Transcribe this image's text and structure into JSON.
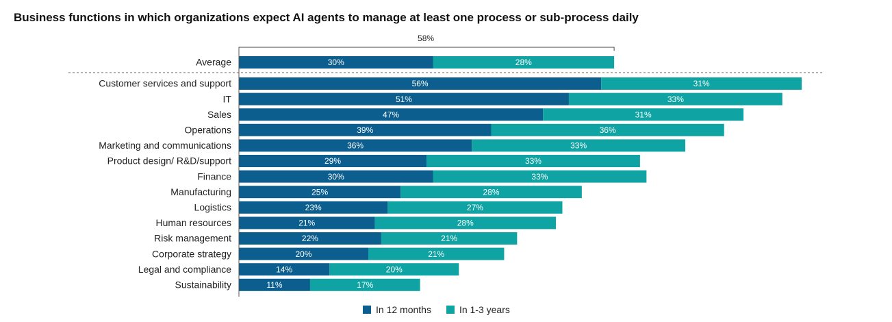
{
  "chart_data": {
    "type": "bar",
    "orientation": "horizontal-stacked",
    "title": "Business functions in which organizations expect AI agents to manage at least one process or sub-process daily",
    "average": {
      "label": "Average",
      "values": [
        30,
        28
      ],
      "value_labels": [
        "30%",
        "28%"
      ],
      "total_label": "58%"
    },
    "categories": [
      "Customer services and support",
      "IT",
      "Sales",
      "Operations",
      "Marketing and communications",
      "Product design/ R&D/support",
      "Finance",
      "Manufacturing",
      "Logistics",
      "Human resources",
      "Risk management",
      "Corporate strategy",
      "Legal and compliance",
      "Sustainability"
    ],
    "series": [
      {
        "name": "In 12 months",
        "color": "#0b5e8e",
        "values": [
          56,
          51,
          47,
          39,
          36,
          29,
          30,
          25,
          23,
          21,
          22,
          20,
          14,
          11
        ],
        "value_labels": [
          "56%",
          "51%",
          "47%",
          "39%",
          "36%",
          "29%",
          "30%",
          "25%",
          "23%",
          "21%",
          "22%",
          "20%",
          "14%",
          "11%"
        ]
      },
      {
        "name": "In 1-3 years",
        "color": "#0fa3a3",
        "values": [
          31,
          33,
          31,
          36,
          33,
          33,
          33,
          28,
          27,
          28,
          21,
          21,
          20,
          17
        ],
        "value_labels": [
          "31%",
          "33%",
          "31%",
          "36%",
          "33%",
          "33%",
          "33%",
          "28%",
          "27%",
          "28%",
          "21%",
          "21%",
          "20%",
          "17%"
        ]
      }
    ],
    "legend_position": "bottom",
    "xlabel": "",
    "ylabel": "",
    "xlim": [
      0,
      87
    ]
  }
}
